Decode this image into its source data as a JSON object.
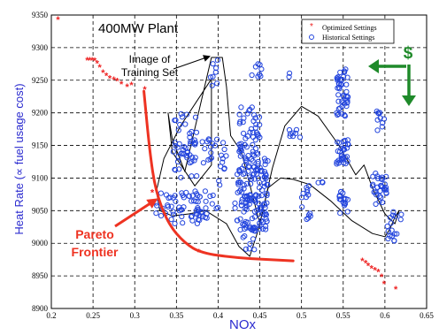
{
  "chart_data": {
    "type": "scatter",
    "title": "400MW Plant",
    "xlabel": "NOx",
    "ylabel": "Heat Rate (∝ fuel usage cost)",
    "xlim": [
      0.2,
      0.65
    ],
    "ylim": [
      8900,
      9350
    ],
    "x_ticks": [
      "0.2",
      "0.25",
      "0.3",
      "0.35",
      "0.4",
      "0.45",
      "0.5",
      "0.55",
      "0.6",
      "0.65"
    ],
    "y_ticks": [
      "8900",
      "8950",
      "9000",
      "9050",
      "9100",
      "9150",
      "9200",
      "9250",
      "9300",
      "9350"
    ],
    "grid": true,
    "legend_position": "top-right",
    "series": [
      {
        "name": "Optimized Settings",
        "marker": "asterisk",
        "color": "#ee2222",
        "points": [
          [
            0.208,
            9343
          ],
          [
            0.243,
            9281
          ],
          [
            0.246,
            9281
          ],
          [
            0.249,
            9281
          ],
          [
            0.252,
            9280
          ],
          [
            0.255,
            9276
          ],
          [
            0.258,
            9270
          ],
          [
            0.262,
            9262
          ],
          [
            0.266,
            9257
          ],
          [
            0.27,
            9253
          ],
          [
            0.275,
            9251
          ],
          [
            0.279,
            9249
          ],
          [
            0.284,
            9244
          ],
          [
            0.291,
            9240
          ],
          [
            0.296,
            9243
          ],
          [
            0.312,
            9236
          ],
          [
            0.321,
            9078
          ],
          [
            0.377,
            8987
          ],
          [
            0.573,
            8973
          ],
          [
            0.577,
            8970
          ],
          [
            0.58,
            8966
          ],
          [
            0.584,
            8962
          ],
          [
            0.588,
            8959
          ],
          [
            0.592,
            8956
          ],
          [
            0.596,
            8949
          ],
          [
            0.599,
            8938
          ],
          [
            0.613,
            8930
          ]
        ]
      },
      {
        "name": "Historical Settings",
        "marker": "circle",
        "color": "#2244dd",
        "clusters": [
          {
            "x": [
              0.325,
              0.4
            ],
            "y": [
              9030,
              9080
            ],
            "n": 70
          },
          {
            "x": [
              0.345,
              0.375
            ],
            "y": [
              9100,
              9200
            ],
            "n": 40
          },
          {
            "x": [
              0.36,
              0.4
            ],
            "y": [
              9120,
              9160
            ],
            "n": 22
          },
          {
            "x": [
              0.39,
              0.405
            ],
            "y": [
              9240,
              9285
            ],
            "n": 8
          },
          {
            "x": [
              0.398,
              0.41
            ],
            "y": [
              9080,
              9160
            ],
            "n": 12
          },
          {
            "x": [
              0.425,
              0.45
            ],
            "y": [
              9130,
              9210
            ],
            "n": 50
          },
          {
            "x": [
              0.42,
              0.46
            ],
            "y": [
              9020,
              9130
            ],
            "n": 140
          },
          {
            "x": [
              0.43,
              0.445
            ],
            "y": [
              8990,
              9030
            ],
            "n": 14
          },
          {
            "x": [
              0.44,
              0.46
            ],
            "y": [
              9250,
              9285
            ],
            "n": 8
          },
          {
            "x": [
              0.485,
              0.5
            ],
            "y": [
              9160,
              9175
            ],
            "n": 8
          },
          {
            "x": [
              0.485,
              0.495
            ],
            "y": [
              9252,
              9262
            ],
            "n": 2
          },
          {
            "x": [
              0.5,
              0.512
            ],
            "y": [
              9035,
              9095
            ],
            "n": 14
          },
          {
            "x": [
              0.52,
              0.53
            ],
            "y": [
              9092,
              9102
            ],
            "n": 3
          },
          {
            "x": [
              0.542,
              0.556
            ],
            "y": [
              9195,
              9270
            ],
            "n": 45
          },
          {
            "x": [
              0.542,
              0.556
            ],
            "y": [
              9120,
              9160
            ],
            "n": 30
          },
          {
            "x": [
              0.545,
              0.556
            ],
            "y": [
              9045,
              9080
            ],
            "n": 18
          },
          {
            "x": [
              0.585,
              0.603
            ],
            "y": [
              9060,
              9110
            ],
            "n": 30
          },
          {
            "x": [
              0.59,
              0.6
            ],
            "y": [
              9170,
              9205
            ],
            "n": 10
          },
          {
            "x": [
              0.603,
              0.615
            ],
            "y": [
              9000,
              9050
            ],
            "n": 14
          },
          {
            "x": [
              0.61,
              0.62
            ],
            "y": [
              9030,
              9045
            ],
            "n": 3
          }
        ]
      }
    ],
    "pareto_frontier": {
      "color": "#ee3322",
      "points": [
        [
          0.311,
          9233
        ],
        [
          0.318,
          9140
        ],
        [
          0.325,
          9080
        ],
        [
          0.34,
          9030
        ],
        [
          0.36,
          9000
        ],
        [
          0.38,
          8985
        ],
        [
          0.42,
          8978
        ],
        [
          0.46,
          8975
        ],
        [
          0.49,
          8973
        ]
      ]
    },
    "training_set_boundary": {
      "color": "#000000",
      "points": [
        [
          0.392,
          9252
        ],
        [
          0.355,
          9180
        ],
        [
          0.335,
          9130
        ],
        [
          0.326,
          9080
        ],
        [
          0.33,
          9050
        ],
        [
          0.345,
          9042
        ],
        [
          0.365,
          9045
        ],
        [
          0.385,
          9050
        ],
        [
          0.41,
          9030
        ],
        [
          0.425,
          8995
        ],
        [
          0.438,
          8980
        ],
        [
          0.448,
          9020
        ],
        [
          0.46,
          9085
        ],
        [
          0.475,
          9100
        ],
        [
          0.49,
          9098
        ],
        [
          0.51,
          9090
        ],
        [
          0.535,
          9065
        ],
        [
          0.56,
          9035
        ],
        [
          0.585,
          9015
        ],
        [
          0.6,
          9010
        ],
        [
          0.606,
          9022
        ],
        [
          0.612,
          9040
        ],
        [
          0.617,
          9050
        ],
        [
          0.612,
          9030
        ],
        [
          0.6,
          9045
        ],
        [
          0.585,
          9085
        ],
        [
          0.575,
          9120
        ],
        [
          0.565,
          9105
        ],
        [
          0.545,
          9150
        ],
        [
          0.52,
          9195
        ],
        [
          0.5,
          9210
        ],
        [
          0.48,
          9180
        ],
        [
          0.465,
          9115
        ],
        [
          0.45,
          9030
        ],
        [
          0.44,
          9080
        ],
        [
          0.428,
          9140
        ],
        [
          0.415,
          9165
        ],
        [
          0.41,
          9240
        ],
        [
          0.405,
          9285
        ],
        [
          0.392,
          9285
        ],
        [
          0.36,
          9110
        ],
        [
          0.345,
          9160
        ],
        [
          0.34,
          9200
        ],
        [
          0.345,
          9140
        ],
        [
          0.372,
          9088
        ],
        [
          0.392,
          9120
        ],
        [
          0.392,
          9252
        ]
      ]
    },
    "annotations": [
      {
        "text_lines": [
          "Image of",
          "Training Set"
        ],
        "color": "#000000",
        "arrow_to": [
          0.39,
          9284
        ]
      },
      {
        "text_lines": [
          "Pareto",
          "Frontier"
        ],
        "color": "#ee3322",
        "arrow_to": [
          0.328,
          9075
        ]
      },
      {
        "text_lines": [
          "$"
        ],
        "color": "#1f8a2a"
      }
    ]
  }
}
